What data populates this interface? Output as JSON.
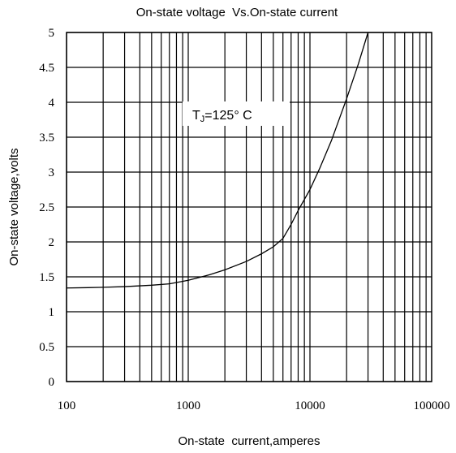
{
  "chart_data": {
    "type": "line",
    "title": "On-state voltage  Vs.On-state current",
    "xlabel": "On-state  current,amperes",
    "ylabel": "On-state voltage,volts",
    "x_scale": "log",
    "xlim": [
      100,
      100000
    ],
    "ylim": [
      0,
      5
    ],
    "x_ticks": [
      "100",
      "1000",
      "10000",
      "100000"
    ],
    "y_ticks": [
      "0",
      "0.5",
      "1",
      "1.5",
      "2",
      "2.5",
      "3",
      "3.5",
      "4",
      "4.5",
      "5"
    ],
    "grid": true,
    "annotation": {
      "main": "T",
      "sub": "J",
      "rest": "=125° C"
    },
    "series": [
      {
        "x": [
          100,
          150,
          200,
          300,
          500,
          700,
          1000,
          1500,
          2000,
          3000,
          4000,
          5000,
          6000,
          7000,
          8000,
          10000,
          12000,
          15000,
          20000,
          25000,
          30000
        ],
        "y": [
          1.34,
          1.345,
          1.35,
          1.36,
          1.38,
          1.4,
          1.45,
          1.53,
          1.6,
          1.72,
          1.83,
          1.93,
          2.05,
          2.25,
          2.45,
          2.75,
          3.05,
          3.45,
          4.05,
          4.55,
          5.0
        ]
      }
    ]
  }
}
